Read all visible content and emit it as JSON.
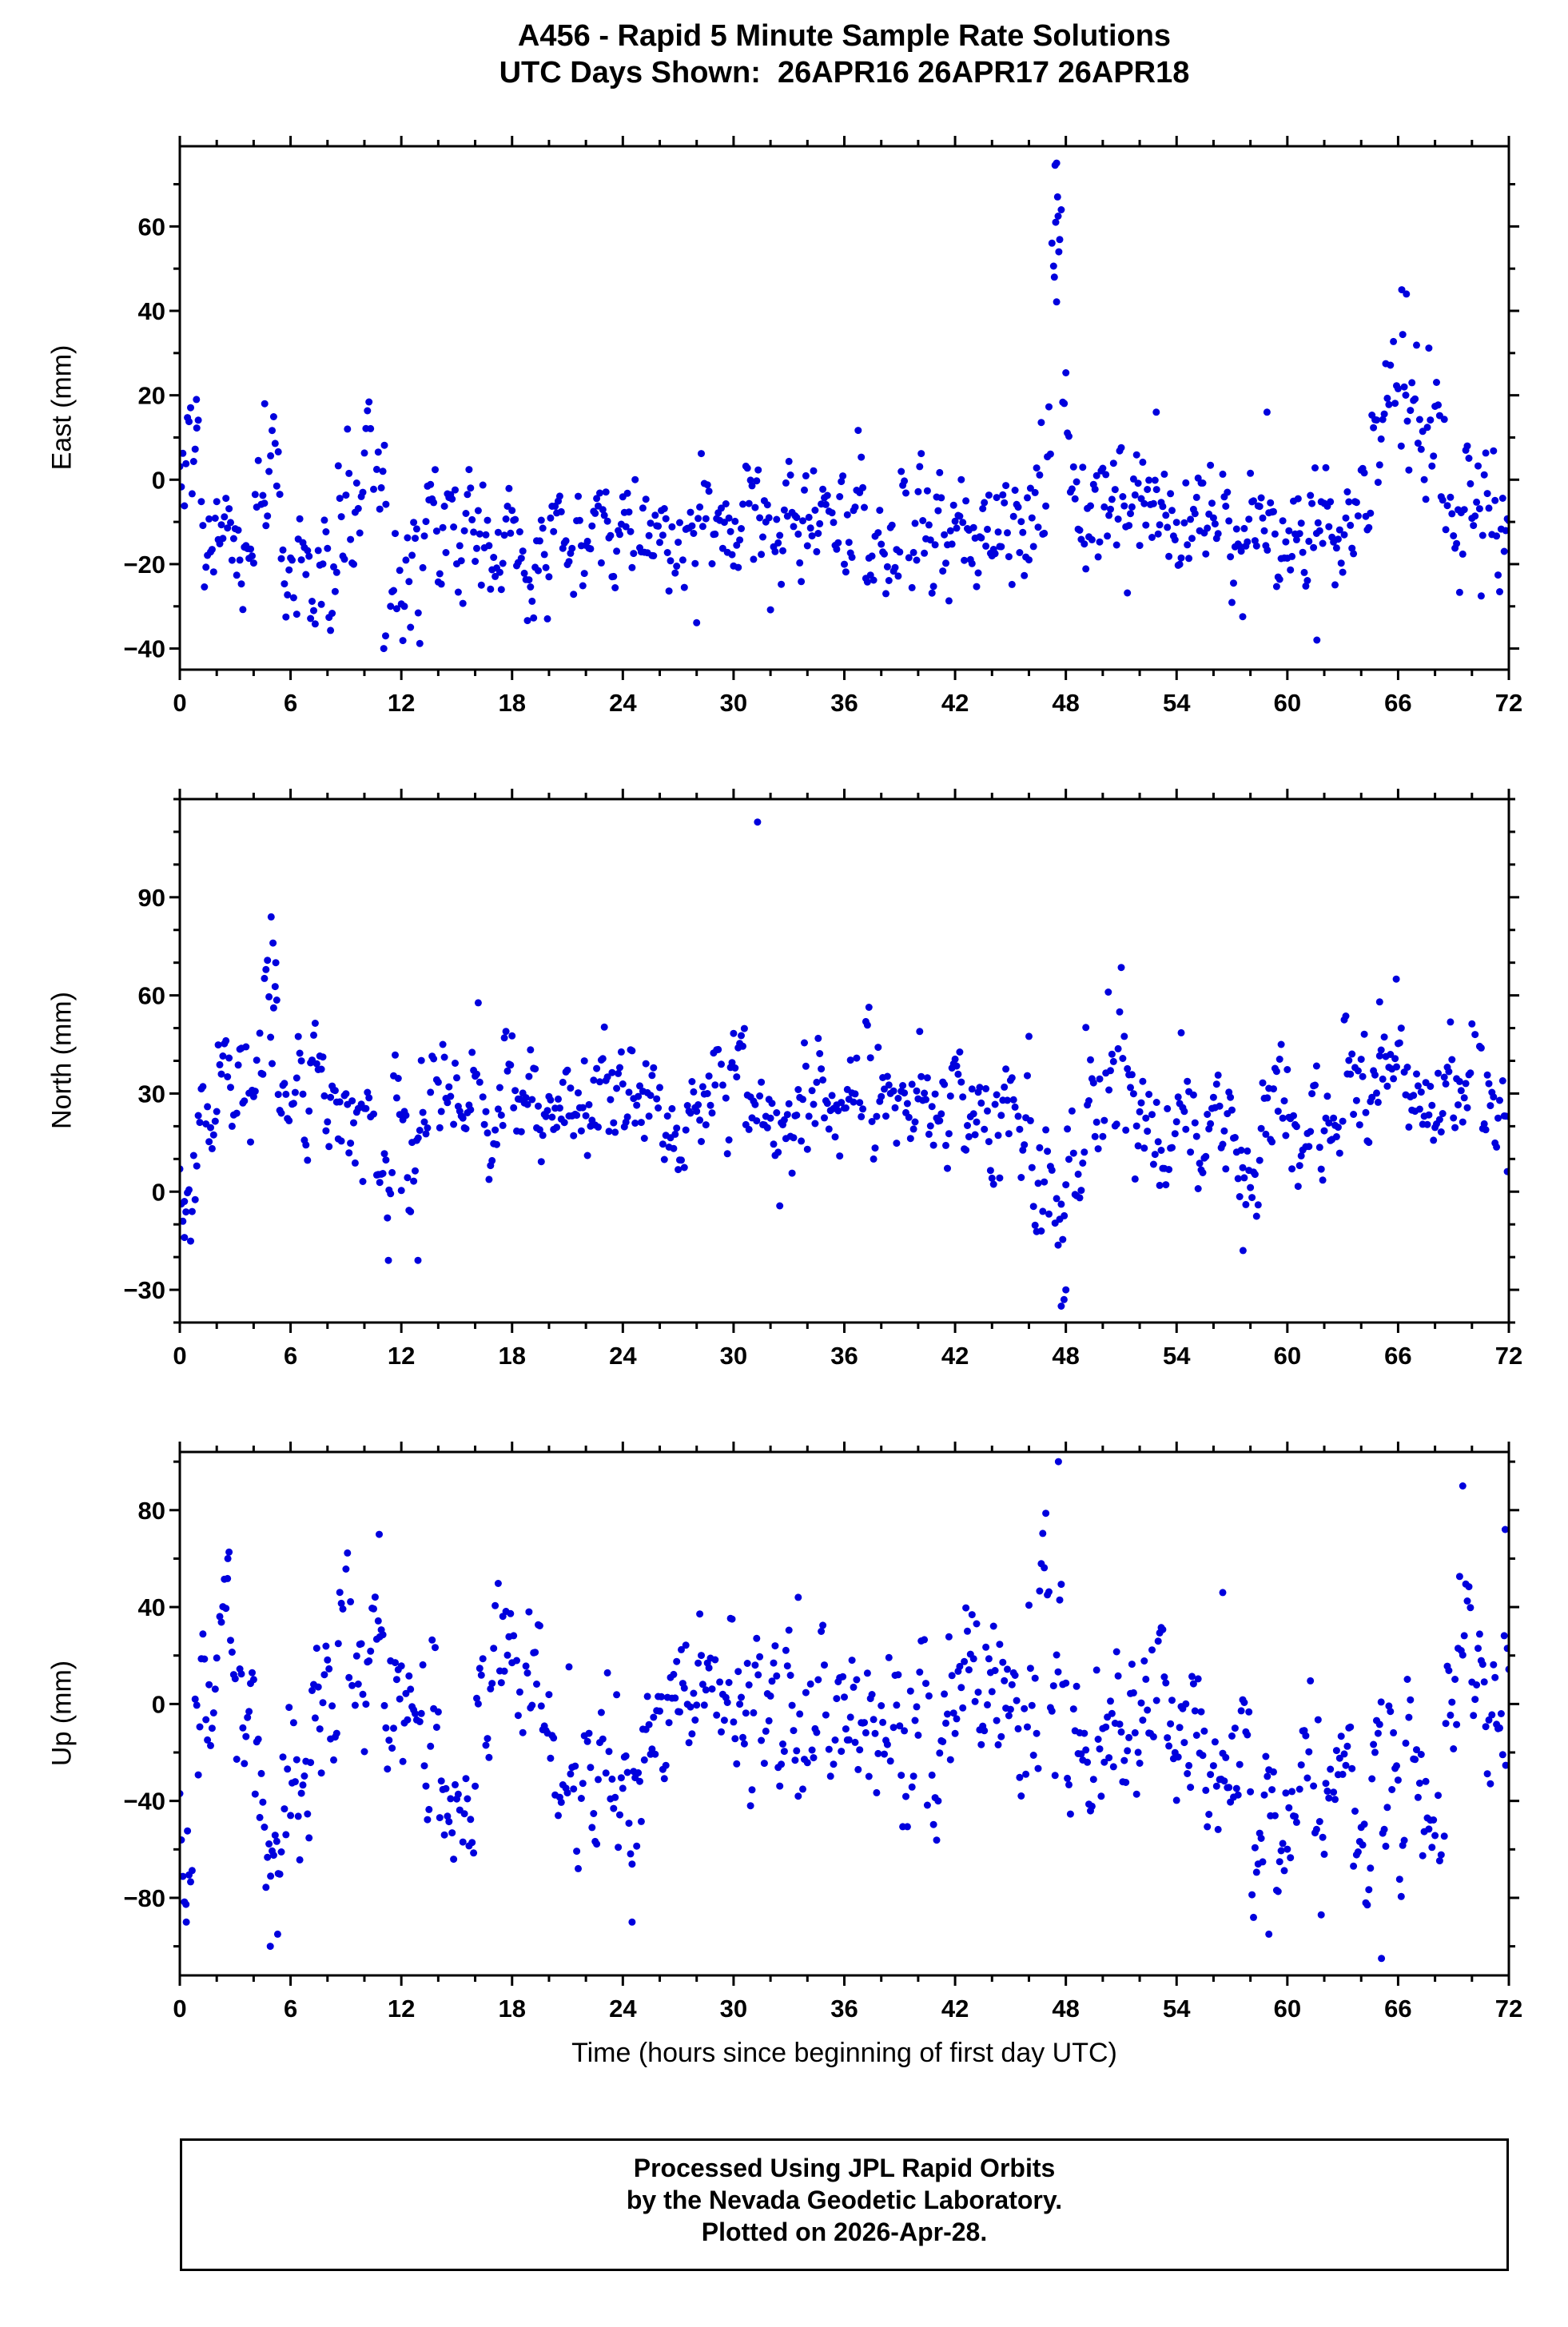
{
  "header": {
    "title_line1": "A456 - Rapid 5 Minute Sample Rate Solutions",
    "title_line2": "UTC Days Shown:  26APR16 26APR17 26APR18"
  },
  "footer": {
    "line1": "Processed Using JPL Rapid Orbits",
    "line2": "by the Nevada Geodetic Laboratory.",
    "line3": "Plotted on 2026-Apr-28."
  },
  "colors": {
    "marker": "#0000DD",
    "frame": "#000000",
    "text": "#000000",
    "background": "#FFFFFF"
  },
  "chart_data": {
    "type": "scatter",
    "title": "A456 - Rapid 5 Minute Sample Rate Solutions",
    "subtitle": "UTC Days Shown:  26APR16 26APR17 26APR18",
    "xlabel": "Time (hours since beginning of first day UTC)",
    "x_range": [
      0,
      72
    ],
    "xticks": [
      0,
      6,
      12,
      18,
      24,
      30,
      36,
      42,
      48,
      54,
      60,
      66,
      72
    ],
    "x_minor_step": 2,
    "sample_interval_hours": 0.0833333,
    "gap_probability": 0.05,
    "ar_coeff": 0.5,
    "marker": "filled-circle",
    "legend": "none",
    "grid": false,
    "panels": [
      {
        "id": "east",
        "ylabel": "East (mm)",
        "ylim": [
          -45,
          79
        ],
        "yticks": [
          -40,
          -20,
          0,
          20,
          40,
          60
        ],
        "y_minor_step": 10,
        "seed": 101,
        "segments": [
          [
            0,
            1,
            2,
            7
          ],
          [
            1,
            2.5,
            -10,
            10
          ],
          [
            2.5,
            4,
            -15,
            8
          ],
          [
            4,
            5.5,
            3,
            9
          ],
          [
            5.5,
            7,
            -14,
            9
          ],
          [
            7,
            8.5,
            -22,
            7
          ],
          [
            8.5,
            10,
            -8,
            8
          ],
          [
            10,
            11.2,
            4,
            7
          ],
          [
            11.2,
            12.2,
            -25,
            9
          ],
          [
            12.2,
            16,
            -14,
            8
          ],
          [
            16,
            20,
            -16,
            8
          ],
          [
            20,
            24,
            -13,
            7
          ],
          [
            24,
            28,
            -11,
            8
          ],
          [
            28,
            31,
            -6,
            8
          ],
          [
            31,
            34,
            -10,
            8
          ],
          [
            34,
            38,
            -12,
            7
          ],
          [
            38,
            42,
            -10,
            8
          ],
          [
            42,
            44,
            -13,
            8
          ],
          [
            44,
            46.5,
            -12,
            9
          ],
          [
            46.5,
            47.2,
            12,
            16
          ],
          [
            47.2,
            47.8,
            45,
            18
          ],
          [
            47.8,
            48.3,
            4,
            12
          ],
          [
            48.3,
            50,
            -7,
            9
          ],
          [
            50,
            53,
            -6,
            8
          ],
          [
            53,
            56,
            -9,
            8
          ],
          [
            56,
            59,
            -15,
            8
          ],
          [
            59,
            61,
            -17,
            7
          ],
          [
            61,
            63,
            -14,
            9
          ],
          [
            63,
            64.5,
            -8,
            7
          ],
          [
            64.5,
            65.5,
            10,
            10
          ],
          [
            65.5,
            67,
            29,
            9
          ],
          [
            67,
            68.5,
            12,
            10
          ],
          [
            68.5,
            70,
            -7,
            8
          ],
          [
            70,
            72,
            -9,
            7
          ]
        ],
        "outliers": [
          [
            47.5,
            75
          ],
          [
            47.55,
            67
          ],
          [
            47.45,
            61
          ],
          [
            47.62,
            54
          ],
          [
            47.38,
            48
          ],
          [
            11.05,
            -40
          ],
          [
            11.15,
            -37
          ],
          [
            61.6,
            -38
          ],
          [
            66.2,
            45
          ],
          [
            66.45,
            44
          ],
          [
            0.9,
            19
          ],
          [
            4.6,
            18
          ],
          [
            52.9,
            16
          ],
          [
            58.9,
            16
          ]
        ]
      },
      {
        "id": "north",
        "ylabel": "North (mm)",
        "ylim": [
          -40,
          120
        ],
        "yticks": [
          -30,
          0,
          30,
          60,
          90
        ],
        "y_minor_step": 10,
        "seed": 202,
        "segments": [
          [
            0,
            0.7,
            -5,
            7
          ],
          [
            0.7,
            2,
            15,
            10
          ],
          [
            2,
            3.5,
            33,
            10
          ],
          [
            3.5,
            4.5,
            40,
            11
          ],
          [
            4.5,
            5.3,
            52,
            14
          ],
          [
            5.3,
            6.5,
            30,
            10
          ],
          [
            6.5,
            9,
            26,
            10
          ],
          [
            9,
            10.5,
            20,
            10
          ],
          [
            10.5,
            11.5,
            6,
            10
          ],
          [
            11.5,
            13,
            12,
            12
          ],
          [
            13,
            16,
            25,
            10
          ],
          [
            16,
            20,
            26,
            10
          ],
          [
            20,
            24,
            25,
            9
          ],
          [
            24,
            28,
            26,
            10
          ],
          [
            28,
            31,
            30,
            10
          ],
          [
            31,
            34,
            27,
            10
          ],
          [
            34,
            38,
            24,
            10
          ],
          [
            38,
            42,
            26,
            10
          ],
          [
            42,
            44,
            28,
            9
          ],
          [
            44,
            46,
            22,
            10
          ],
          [
            46,
            47,
            8,
            10
          ],
          [
            47,
            48,
            -8,
            12
          ],
          [
            48,
            49,
            8,
            10
          ],
          [
            49,
            51,
            30,
            12
          ],
          [
            51,
            57,
            22,
            10
          ],
          [
            57,
            58.5,
            12,
            10
          ],
          [
            58.5,
            63,
            23,
            9
          ],
          [
            63,
            66.5,
            40,
            10
          ],
          [
            66.5,
            68,
            24,
            8
          ],
          [
            68,
            70.5,
            30,
            9
          ],
          [
            70.5,
            72,
            24,
            8
          ]
        ],
        "outliers": [
          [
            31.3,
            113
          ],
          [
            4.95,
            84
          ],
          [
            5.05,
            76
          ],
          [
            5.2,
            70
          ],
          [
            50.3,
            61
          ],
          [
            65.9,
            65
          ],
          [
            65.0,
            58
          ],
          [
            47.75,
            -35
          ],
          [
            47.9,
            -33
          ],
          [
            48.0,
            -30
          ],
          [
            11.3,
            -21
          ],
          [
            12.9,
            -21
          ],
          [
            57.6,
            -18
          ],
          [
            0.25,
            -14
          ]
        ]
      },
      {
        "id": "up",
        "ylabel": "Up (mm)",
        "ylim": [
          -112,
          104
        ],
        "yticks": [
          -80,
          -40,
          0,
          40,
          80
        ],
        "y_minor_step": 20,
        "seed": 303,
        "segments": [
          [
            0,
            0.8,
            -40,
            28
          ],
          [
            0.8,
            2,
            0,
            20
          ],
          [
            2,
            3,
            32,
            16
          ],
          [
            3,
            4,
            -5,
            20
          ],
          [
            4,
            5.5,
            -55,
            20
          ],
          [
            5.5,
            7,
            -28,
            16
          ],
          [
            7,
            8.5,
            0,
            20
          ],
          [
            8.5,
            11,
            25,
            20
          ],
          [
            11,
            12.5,
            8,
            20
          ],
          [
            12.5,
            14,
            -12,
            20
          ],
          [
            14,
            16,
            -35,
            16
          ],
          [
            16,
            18,
            -2,
            20
          ],
          [
            18,
            20,
            4,
            18
          ],
          [
            20,
            22,
            -25,
            18
          ],
          [
            22,
            24,
            -28,
            20
          ],
          [
            24,
            25,
            -45,
            24
          ],
          [
            25,
            27,
            -12,
            20
          ],
          [
            27,
            29,
            -6,
            18
          ],
          [
            29,
            31,
            0,
            20
          ],
          [
            31,
            33,
            4,
            20
          ],
          [
            33,
            35,
            -6,
            18
          ],
          [
            35,
            37,
            0,
            18
          ],
          [
            37,
            39,
            -10,
            18
          ],
          [
            39,
            41,
            -15,
            18
          ],
          [
            41,
            43,
            0,
            18
          ],
          [
            43,
            45,
            -10,
            18
          ],
          [
            45,
            46.5,
            -5,
            18
          ],
          [
            46.5,
            48,
            40,
            25
          ],
          [
            48,
            50,
            -20,
            18
          ],
          [
            50,
            52,
            -10,
            18
          ],
          [
            52,
            54,
            -5,
            18
          ],
          [
            54,
            56,
            -12,
            18
          ],
          [
            56,
            58,
            -22,
            18
          ],
          [
            58,
            60,
            -52,
            20
          ],
          [
            60,
            62,
            -40,
            18
          ],
          [
            62,
            63.5,
            -30,
            18
          ],
          [
            63.5,
            65.5,
            -55,
            22
          ],
          [
            65.5,
            67,
            -40,
            22
          ],
          [
            67,
            68.5,
            -58,
            18
          ],
          [
            68.5,
            70,
            18,
            26
          ],
          [
            70,
            71,
            8,
            20
          ],
          [
            71,
            72,
            14,
            20
          ]
        ],
        "outliers": [
          [
            47.6,
            100
          ],
          [
            69.5,
            90
          ],
          [
            71.8,
            72
          ],
          [
            0.35,
            -90
          ],
          [
            4.9,
            -100
          ],
          [
            5.3,
            -95
          ],
          [
            24.5,
            -90
          ],
          [
            59.0,
            -95
          ],
          [
            65.1,
            -105
          ],
          [
            2.6,
            60
          ],
          [
            10.8,
            70
          ],
          [
            56.5,
            46
          ],
          [
            33.5,
            44
          ]
        ]
      }
    ]
  }
}
